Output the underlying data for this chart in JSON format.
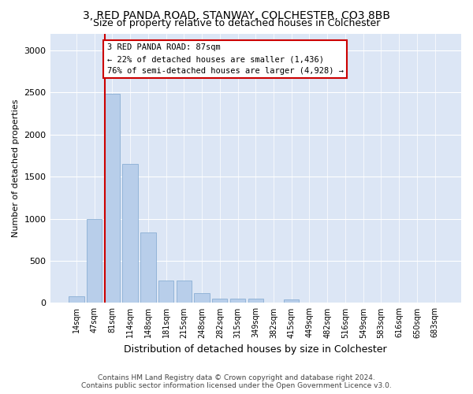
{
  "title": "3, RED PANDA ROAD, STANWAY, COLCHESTER, CO3 8BB",
  "subtitle": "Size of property relative to detached houses in Colchester",
  "xlabel": "Distribution of detached houses by size in Colchester",
  "ylabel": "Number of detached properties",
  "categories": [
    "14sqm",
    "47sqm",
    "81sqm",
    "114sqm",
    "148sqm",
    "181sqm",
    "215sqm",
    "248sqm",
    "282sqm",
    "315sqm",
    "349sqm",
    "382sqm",
    "415sqm",
    "449sqm",
    "482sqm",
    "516sqm",
    "549sqm",
    "583sqm",
    "616sqm",
    "650sqm",
    "683sqm"
  ],
  "values": [
    75,
    1000,
    2480,
    1650,
    840,
    270,
    270,
    120,
    55,
    50,
    50,
    0,
    40,
    0,
    0,
    0,
    0,
    0,
    0,
    0,
    0
  ],
  "bar_color": "#b8ceea",
  "bar_edge_color": "#8aafd4",
  "vline_color": "#cc0000",
  "vline_x": 1.6,
  "annotation_text": "3 RED PANDA ROAD: 87sqm\n← 22% of detached houses are smaller (1,436)\n76% of semi-detached houses are larger (4,928) →",
  "annotation_box_edge_color": "#cc0000",
  "ylim": [
    0,
    3200
  ],
  "yticks": [
    0,
    500,
    1000,
    1500,
    2000,
    2500,
    3000
  ],
  "footer_line1": "Contains HM Land Registry data © Crown copyright and database right 2024.",
  "footer_line2": "Contains public sector information licensed under the Open Government Licence v3.0.",
  "fig_bg_color": "#ffffff",
  "plot_bg_color": "#dce6f5"
}
